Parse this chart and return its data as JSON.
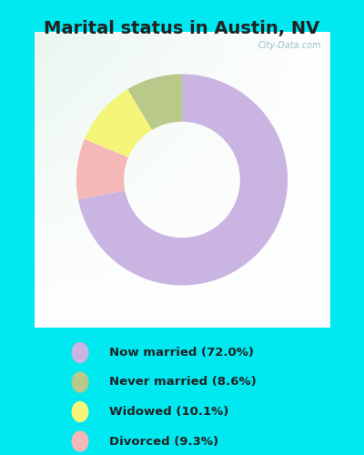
{
  "title": "Marital status in Austin, NV",
  "slices": [
    72.0,
    9.3,
    10.1,
    8.6
  ],
  "colors": [
    "#c9b4e2",
    "#f5b8b8",
    "#f5f57a",
    "#b8c98a"
  ],
  "labels": [
    "Now married (72.0%)",
    "Never married (8.6%)",
    "Widowed (10.1%)",
    "Divorced (9.3%)"
  ],
  "legend_colors": [
    "#c9b4e2",
    "#b8c98a",
    "#f5f57a",
    "#f5b8b8"
  ],
  "legend_labels": [
    "Now married (72.0%)",
    "Never married (8.6%)",
    "Widowed (10.1%)",
    "Divorced (9.3%)"
  ],
  "bg_outer": "#00e8f0",
  "bg_chart_topleft": "#d0ecd8",
  "bg_chart_center": "#eaf5ec",
  "title_fontsize": 14,
  "watermark": "City-Data.com",
  "donut_width": 0.45,
  "start_angle": 90
}
